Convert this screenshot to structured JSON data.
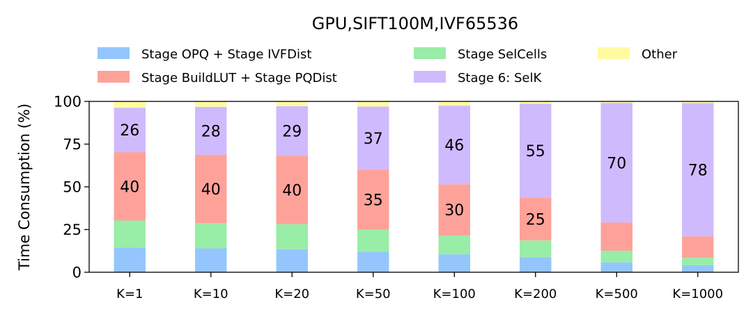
{
  "chart_data": {
    "type": "bar",
    "stacked": true,
    "title": "GPU,SIFT100M,IVF65536",
    "xlabel": "",
    "ylabel": "Time Consumption (%)",
    "ylim": [
      0,
      100
    ],
    "yticks": [
      "0",
      "25",
      "50",
      "75",
      "100"
    ],
    "grid": false,
    "legend_position": "top",
    "categories": [
      "K=1",
      "K=10",
      "K=20",
      "K=50",
      "K=100",
      "K=200",
      "K=500",
      "K=1000"
    ],
    "series": [
      {
        "name": "Stage OPQ + Stage IVFDist",
        "color": "#94c6fd",
        "values": [
          14.5,
          14,
          13.5,
          12,
          10.5,
          8.8,
          5.8,
          4.2
        ]
      },
      {
        "name": "Stage SelCells",
        "color": "#98eda7",
        "values": [
          15.8,
          14.8,
          14.7,
          13,
          11,
          9.8,
          6.8,
          4.3
        ]
      },
      {
        "name": "Stage BuildLUT + Stage PQDist",
        "color": "#fea299",
        "values": [
          40,
          40,
          40,
          35,
          30,
          25,
          16.5,
          12.5
        ]
      },
      {
        "name": "Stage 6: SelK",
        "color": "#cfbafe",
        "values": [
          26,
          28,
          29,
          37,
          46,
          55,
          70,
          78
        ]
      },
      {
        "name": "Other",
        "color": "#fefba1",
        "values": [
          3.7,
          3.2,
          2.8,
          3,
          2.5,
          1.4,
          0.9,
          1
        ]
      }
    ],
    "data_labels": [
      {
        "series": "Stage BuildLUT + Stage PQDist",
        "values": [
          "40",
          "40",
          "40",
          "35",
          "30",
          "25",
          null,
          null
        ]
      },
      {
        "series": "Stage 6: SelK",
        "values": [
          "26",
          "28",
          "29",
          "37",
          "46",
          "55",
          "70",
          "78"
        ]
      }
    ],
    "legend_order": [
      "Stage OPQ + Stage IVFDist",
      "Stage BuildLUT + Stage PQDist",
      "Stage SelCells",
      "Stage 6: SelK",
      "Other"
    ]
  }
}
